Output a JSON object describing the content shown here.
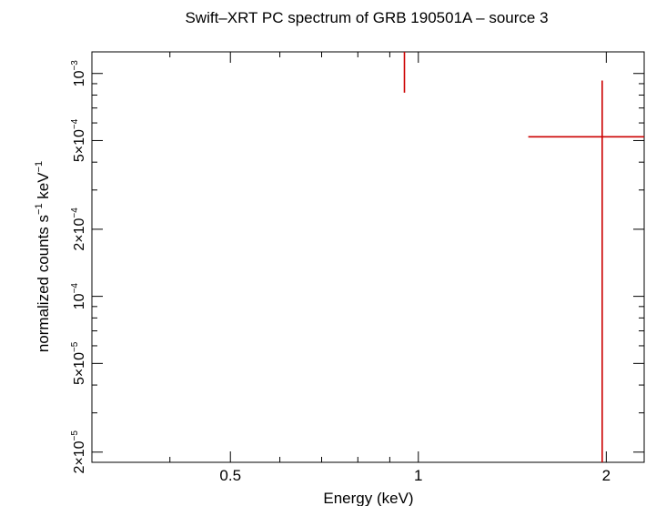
{
  "chart_data": {
    "type": "scatter",
    "title": "Swift–XRT PC spectrum of GRB 190501A – source 3",
    "xlabel": "Energy (keV)",
    "ylabel_parts": {
      "base": "normalized counts s",
      "sup1": "−1",
      "mid": " keV",
      "sup2": "−1"
    },
    "x_scale": "log",
    "y_scale": "log",
    "xlim": [
      0.3,
      2.3
    ],
    "ylim": [
      1.8e-05,
      0.00125
    ],
    "x_ticks": [
      {
        "value": 0.5,
        "label": "0.5"
      },
      {
        "value": 1,
        "label": "1"
      },
      {
        "value": 2,
        "label": "2"
      }
    ],
    "y_ticks": [
      {
        "value": 2e-05,
        "mant": "2×10",
        "exp": "−5"
      },
      {
        "value": 5e-05,
        "mant": "5×10",
        "exp": "−5"
      },
      {
        "value": 0.0001,
        "mant": "10",
        "exp": "−4"
      },
      {
        "value": 0.0002,
        "mant": "2×10",
        "exp": "−4"
      },
      {
        "value": 0.0005,
        "mant": "5×10",
        "exp": "−4"
      },
      {
        "value": 0.001,
        "mant": "10",
        "exp": "−3"
      }
    ],
    "grid": false,
    "series": [
      {
        "color": "#cc0000",
        "points": [
          {
            "x": 0.95,
            "xlo": 0.95,
            "xhi": 0.95,
            "y": 0.001,
            "ylo": 0.00082,
            "yhi": 0.00125
          },
          {
            "x": 1.97,
            "xlo": 1.5,
            "xhi": 2.3,
            "y": 0.00052,
            "ylo": 1.8e-05,
            "yhi": 0.00093
          }
        ]
      }
    ]
  }
}
